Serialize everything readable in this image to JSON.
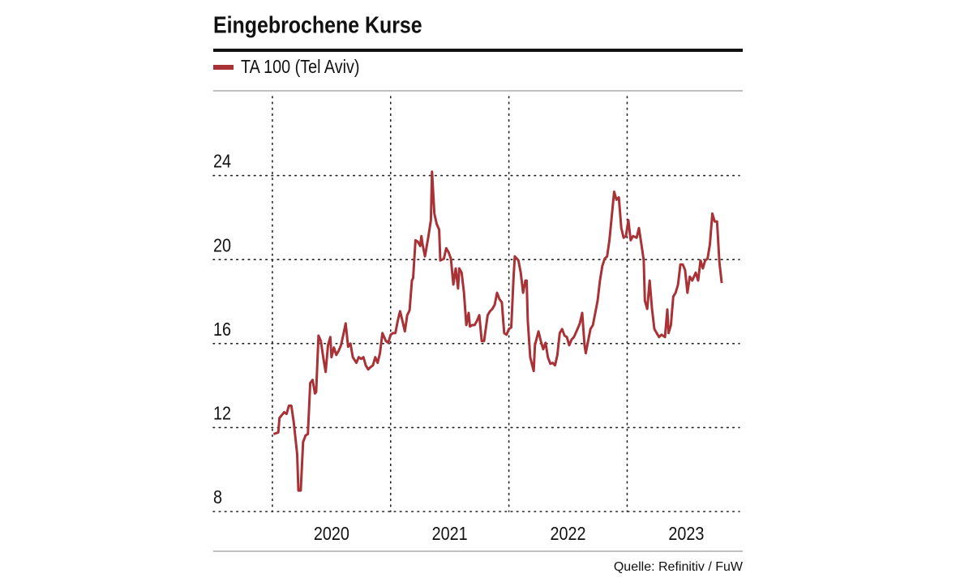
{
  "chart_data": {
    "type": "line",
    "title": "Eingebrochene Kurse",
    "source": "Quelle: Refinitiv / FuW",
    "x": [
      2020.01,
      2020.05,
      2020.06,
      2020.1,
      2020.12,
      2020.14,
      2020.16,
      2020.18,
      2020.21,
      2020.22,
      2020.24,
      2020.26,
      2020.28,
      2020.3,
      2020.32,
      2020.34,
      2020.36,
      2020.37,
      2020.39,
      2020.41,
      2020.43,
      2020.45,
      2020.47,
      2020.49,
      2020.5,
      2020.52,
      2020.54,
      2020.56,
      2020.58,
      2020.6,
      2020.62,
      2020.64,
      2020.66,
      2020.68,
      2020.71,
      2020.73,
      2020.75,
      2020.77,
      2020.79,
      2020.81,
      2020.83,
      2020.85,
      2020.87,
      2020.89,
      2020.91,
      2020.93,
      2020.96,
      2020.98,
      2021.0,
      2021.02,
      2021.04,
      2021.06,
      2021.08,
      2021.1,
      2021.12,
      2021.14,
      2021.16,
      2021.18,
      2021.19,
      2021.21,
      2021.23,
      2021.25,
      2021.26,
      2021.27,
      2021.29,
      2021.32,
      2021.34,
      2021.35,
      2021.37,
      2021.39,
      2021.41,
      2021.42,
      2021.45,
      2021.47,
      2021.49,
      2021.51,
      2021.53,
      2021.55,
      2021.57,
      2021.58,
      2021.6,
      2021.62,
      2021.64,
      2021.66,
      2021.67,
      2021.69,
      2021.71,
      2021.73,
      2021.75,
      2021.77,
      2021.79,
      2021.82,
      2021.84,
      2021.86,
      2021.88,
      2021.9,
      2021.92,
      2021.94,
      2021.96,
      2021.98,
      2022.0,
      2022.02,
      2022.04,
      2022.05,
      2022.08,
      2022.1,
      2022.12,
      2022.14,
      2022.15,
      2022.16,
      2022.18,
      2022.21,
      2022.22,
      2022.25,
      2022.27,
      2022.29,
      2022.31,
      2022.33,
      2022.35,
      2022.37,
      2022.39,
      2022.41,
      2022.43,
      2022.45,
      2022.47,
      2022.49,
      2022.51,
      2022.53,
      2022.55,
      2022.58,
      2022.6,
      2022.62,
      2022.64,
      2022.65,
      2022.67,
      2022.69,
      2022.71,
      2022.73,
      2022.75,
      2022.77,
      2022.79,
      2022.81,
      2022.83,
      2022.85,
      2022.87,
      2022.89,
      2022.91,
      2022.93,
      2022.95,
      2022.97,
      2022.99,
      2023.01,
      2023.03,
      2023.05,
      2023.08,
      2023.1,
      2023.12,
      2023.14,
      2023.15,
      2023.17,
      2023.19,
      2023.21,
      2023.23,
      2023.25,
      2023.27,
      2023.29,
      2023.32,
      2023.34,
      2023.35,
      2023.37,
      2023.39,
      2023.41,
      2023.43,
      2023.45,
      2023.47,
      2023.49,
      2023.51,
      2023.53,
      2023.55,
      2023.58,
      2023.6,
      2023.62,
      2023.64,
      2023.66,
      2023.68,
      2023.7,
      2023.72,
      2023.74,
      2023.76,
      2023.78,
      2023.8
    ],
    "series": [
      {
        "name": "TA 100 (Tel Aviv)",
        "color": "#a83236",
        "values": [
          11.69,
          11.77,
          12.46,
          12.73,
          12.65,
          13.04,
          13.04,
          12.27,
          10.73,
          9.0,
          9.0,
          11.31,
          11.62,
          11.69,
          14.12,
          14.27,
          13.62,
          13.69,
          16.38,
          16.12,
          15.35,
          14.65,
          15.92,
          16.31,
          15.35,
          15.81,
          15.46,
          15.65,
          15.92,
          16.42,
          16.96,
          15.85,
          16.0,
          15.35,
          15.08,
          15.35,
          15.27,
          15.35,
          14.96,
          14.77,
          14.88,
          14.96,
          15.35,
          15.08,
          15.54,
          16.5,
          16.12,
          16.04,
          16.42,
          16.5,
          16.5,
          17.08,
          17.54,
          17.08,
          16.58,
          17.35,
          17.58,
          19.0,
          19.12,
          20.92,
          20.85,
          20.65,
          21.12,
          20.73,
          20.15,
          21.12,
          21.88,
          24.19,
          22.19,
          21.69,
          21.42,
          19.96,
          20.04,
          20.54,
          20.35,
          20.04,
          18.81,
          19.58,
          18.62,
          19.58,
          19.38,
          18.42,
          16.88,
          17.46,
          16.81,
          16.88,
          16.88,
          17.08,
          17.35,
          16.12,
          16.12,
          17.35,
          17.54,
          17.65,
          17.85,
          18.42,
          18.12,
          17.96,
          16.5,
          16.42,
          16.69,
          16.77,
          19.19,
          20.15,
          19.96,
          19.38,
          18.42,
          19.0,
          19.0,
          17.08,
          15.35,
          14.69,
          15.92,
          16.58,
          16.12,
          15.73,
          16.04,
          15.35,
          15.04,
          15.08,
          14.96,
          15.46,
          16.5,
          16.69,
          16.38,
          16.31,
          15.92,
          16.19,
          16.31,
          16.69,
          16.96,
          17.46,
          15.92,
          15.54,
          16.12,
          16.69,
          16.88,
          17.46,
          18.04,
          19.0,
          19.69,
          20.04,
          20.15,
          20.92,
          22.08,
          23.23,
          22.85,
          22.96,
          21.5,
          21.04,
          21.12,
          21.88,
          20.92,
          21.12,
          21.04,
          21.5,
          20.73,
          19.96,
          18.04,
          17.65,
          19.0,
          17.65,
          16.69,
          16.5,
          16.31,
          16.42,
          16.31,
          17.62,
          16.5,
          16.88,
          18.23,
          18.42,
          18.81,
          19.77,
          19.77,
          19.5,
          18.42,
          19.19,
          19.0,
          19.38,
          19.0,
          19.96,
          19.58,
          19.96,
          20.04,
          20.73,
          22.19,
          21.81,
          21.81,
          19.88,
          18.88
        ]
      }
    ],
    "xlim": [
      2019.5,
      2023.95
    ],
    "xticks": [
      2020,
      2021,
      2022,
      2023
    ],
    "ylim": [
      8,
      28
    ],
    "yticks": [
      8,
      12,
      16,
      20,
      24
    ],
    "grid": true
  }
}
